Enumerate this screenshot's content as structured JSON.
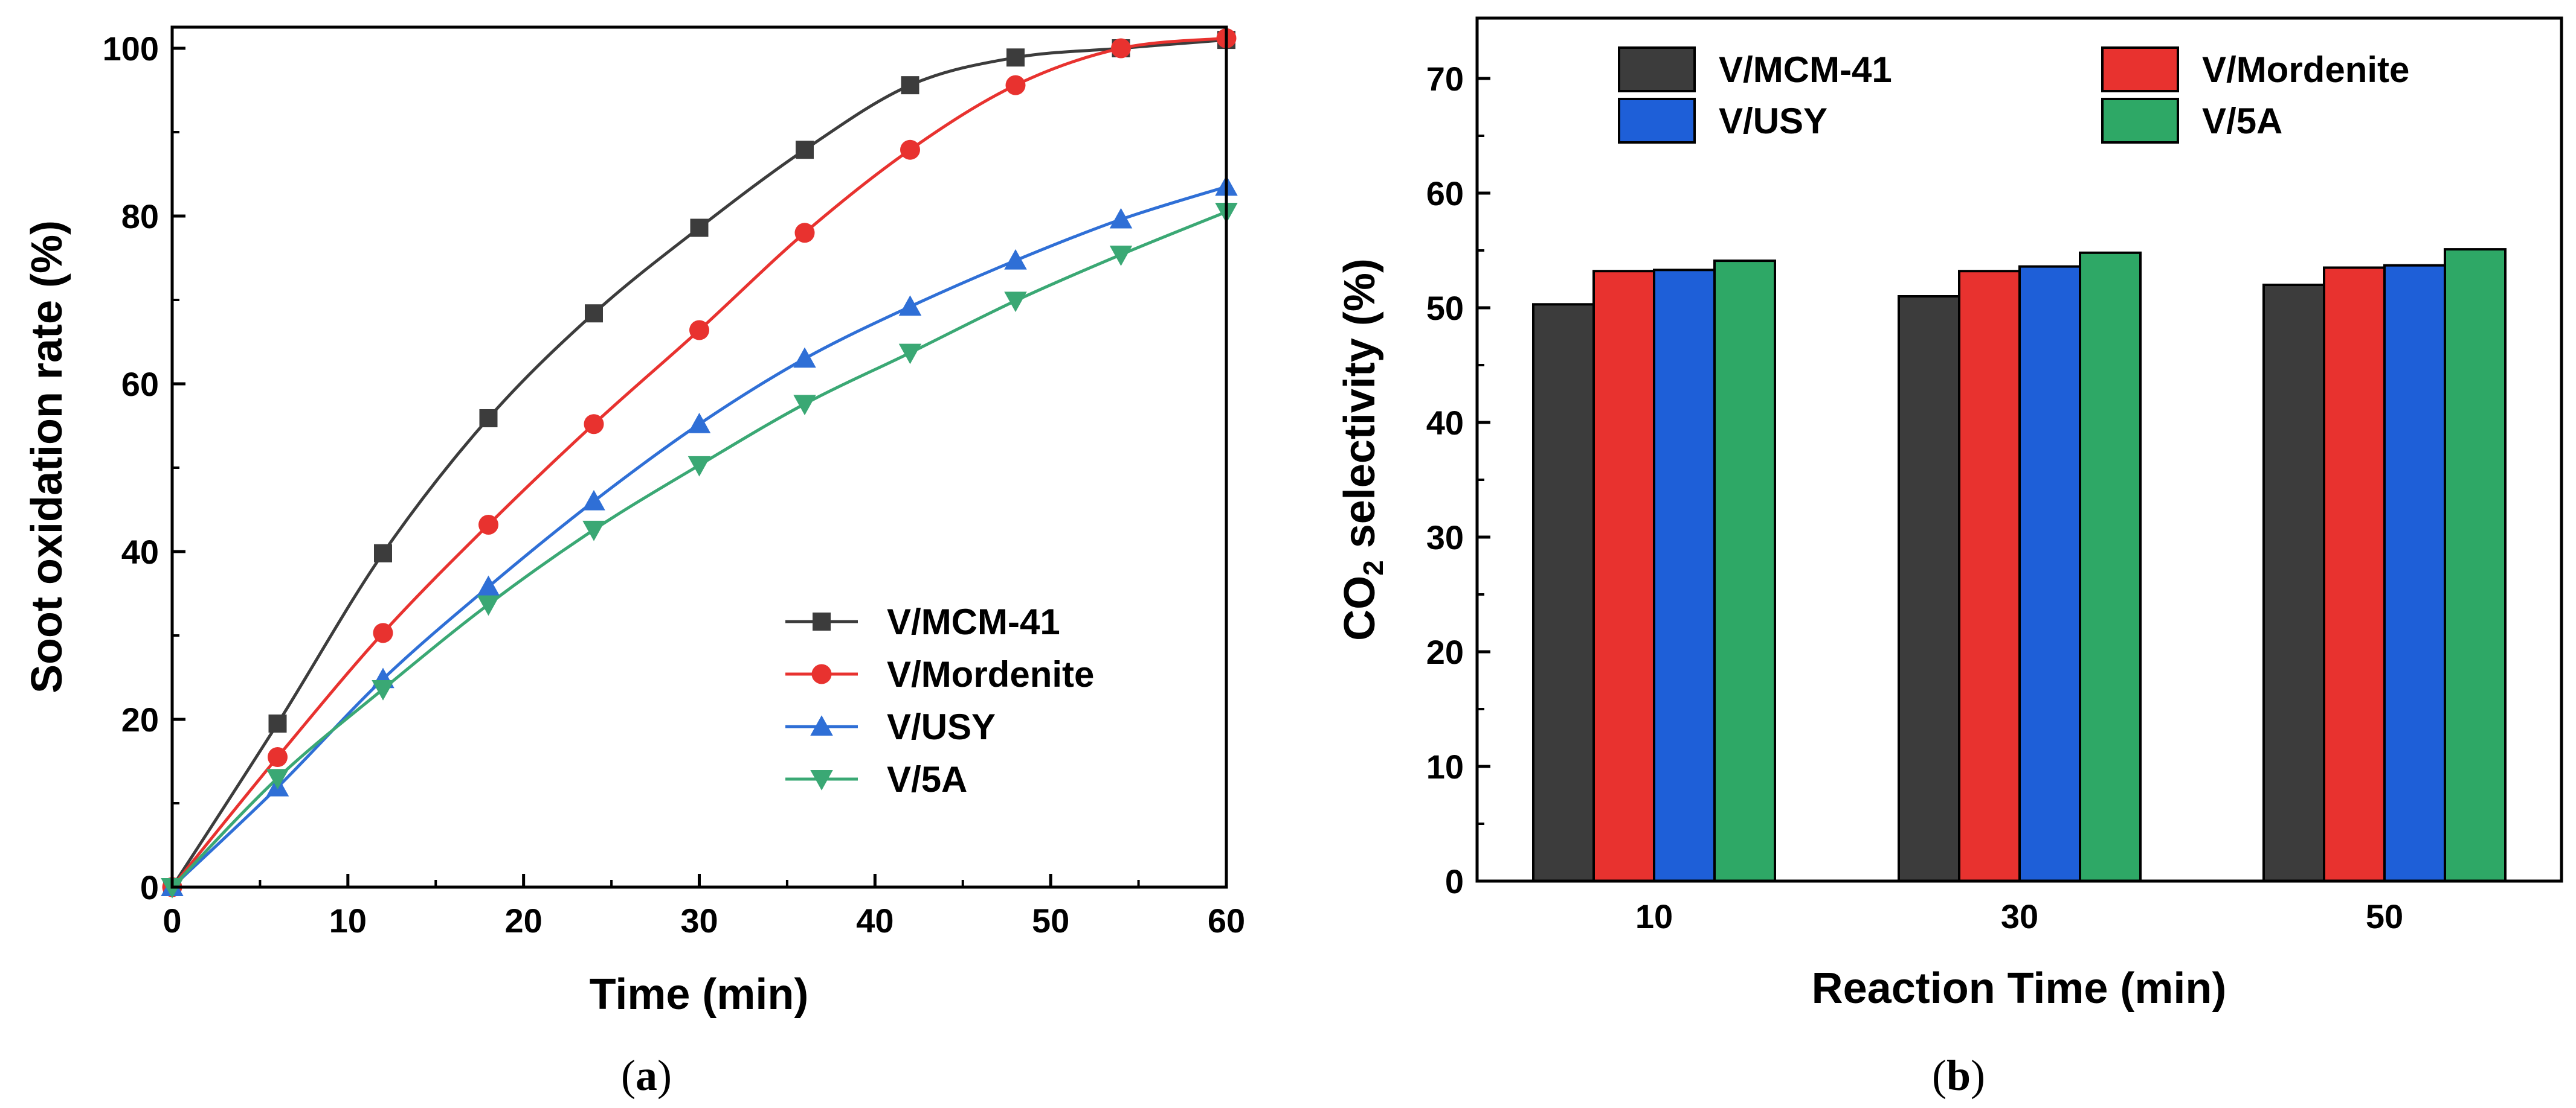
{
  "chart_data": [
    {
      "panel": "a",
      "type": "line",
      "title": "",
      "xlabel": "Time (min)",
      "ylabel": "Soot oxidation rate (%)",
      "xlim": [
        0,
        60
      ],
      "ylim": [
        0,
        100
      ],
      "xticks": [
        0,
        10,
        20,
        30,
        40,
        50,
        60
      ],
      "yticks": [
        0,
        20,
        40,
        60,
        80,
        100
      ],
      "legend_position": "lower-right",
      "x": [
        0,
        6,
        12,
        18,
        24,
        30,
        36,
        42,
        48,
        54,
        60
      ],
      "series": [
        {
          "name": "V/MCM-41",
          "color": "#3c3c3c",
          "marker": "square",
          "values": [
            0,
            19.5,
            39.8,
            55.9,
            68.4,
            78.6,
            87.9,
            95.6,
            98.9,
            100,
            101
          ]
        },
        {
          "name": "V/Mordenite",
          "color": "#e8322f",
          "marker": "circle",
          "values": [
            0,
            15.5,
            30.3,
            43.2,
            55.2,
            66.4,
            78.0,
            87.9,
            95.6,
            100,
            101.2
          ]
        },
        {
          "name": "V/USY",
          "color": "#2f6fd6",
          "marker": "triangle-up",
          "values": [
            0,
            11.9,
            24.8,
            35.8,
            46.0,
            55.2,
            63.0,
            69.2,
            74.7,
            79.6,
            83.5
          ]
        },
        {
          "name": "V/5A",
          "color": "#3aa874",
          "marker": "triangle-down",
          "values": [
            0,
            13.0,
            23.6,
            33.7,
            42.6,
            50.3,
            57.6,
            63.7,
            69.9,
            75.4,
            80.5
          ]
        }
      ]
    },
    {
      "panel": "b",
      "type": "bar",
      "title": "",
      "xlabel": "Reaction Time (min)",
      "ylabel_main": "CO",
      "ylabel_sub": "2",
      "ylabel_rest": " selectivity (%)",
      "ylim": [
        0,
        75
      ],
      "yticks": [
        0,
        10,
        20,
        30,
        40,
        50,
        60,
        70
      ],
      "legend_position": "top",
      "categories": [
        "10",
        "30",
        "50"
      ],
      "series": [
        {
          "name": "V/MCM-41",
          "color": "#3c3c3c",
          "values": [
            50.3,
            51.0,
            52.0
          ]
        },
        {
          "name": "V/Mordenite",
          "color": "#e8322f",
          "values": [
            53.2,
            53.2,
            53.5
          ]
        },
        {
          "name": "V/USY",
          "color": "#1e5fd8",
          "values": [
            53.3,
            53.6,
            53.7
          ]
        },
        {
          "name": "V/5A",
          "color": "#2ea866",
          "values": [
            54.1,
            54.8,
            55.1
          ]
        }
      ]
    }
  ],
  "captions": {
    "a_open": "(",
    "a": "a",
    "a_close": ")",
    "b_open": "(",
    "b": "b",
    "b_close": ")"
  }
}
